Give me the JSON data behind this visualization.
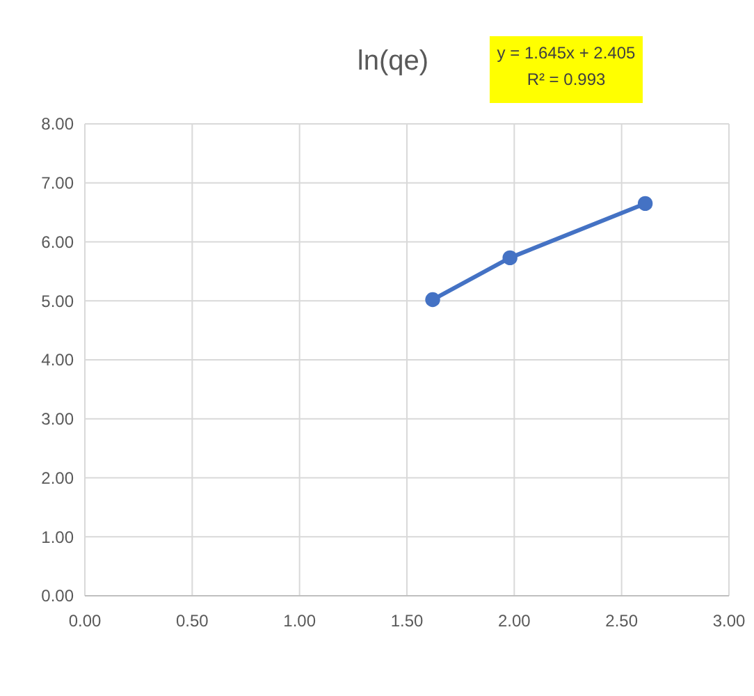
{
  "chart_data": {
    "type": "line",
    "title": "ln(qe)",
    "x": [
      1.62,
      1.98,
      2.61
    ],
    "series": [
      {
        "color": "#4472c4",
        "values": [
          5.02,
          5.73,
          6.65
        ]
      }
    ],
    "xlim": [
      0,
      3
    ],
    "xticks": [
      {
        "value": 0,
        "label": "0.00"
      },
      {
        "value": 0.5,
        "label": "0.50"
      },
      {
        "value": 1,
        "label": "1.00"
      },
      {
        "value": 1.5,
        "label": "1.50"
      },
      {
        "value": 2,
        "label": "2.00"
      },
      {
        "value": 2.5,
        "label": "2.50"
      },
      {
        "value": 3,
        "label": "3.00"
      }
    ],
    "ylim": [
      0,
      8
    ],
    "yticks": [
      {
        "value": 0,
        "label": "0.00"
      },
      {
        "value": 1,
        "label": "1.00"
      },
      {
        "value": 2,
        "label": "2.00"
      },
      {
        "value": 3,
        "label": "3.00"
      },
      {
        "value": 4,
        "label": "4.00"
      },
      {
        "value": 5,
        "label": "5.00"
      },
      {
        "value": 6,
        "label": "6.00"
      },
      {
        "value": 7,
        "label": "7.00"
      },
      {
        "value": 8,
        "label": "8.00"
      }
    ],
    "grid": true,
    "marker": "circle",
    "line_style": "solid",
    "annotations": [
      "y = 1.645x + 2.405",
      "R² = 0.993"
    ]
  }
}
